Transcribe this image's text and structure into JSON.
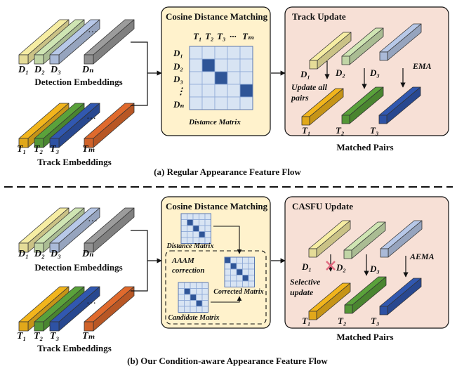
{
  "colors": {
    "d1": "#f6eda3",
    "d2": "#cfe5b3",
    "d3": "#b7c8e8",
    "dn": "#9c9c9c",
    "t1": "#f2b51c",
    "t2": "#5aa23b",
    "t3": "#3158b0",
    "tm": "#e06a2d",
    "panel": "#fff2cc",
    "panel_right": "#f7e0d6",
    "matrix_cell": "#d8e4f3",
    "matrix_dark": "#2f5597",
    "cross": "#e06a80"
  },
  "top": {
    "detection": {
      "labels": [
        "D₁",
        "D₂",
        "D₃",
        "Dₙ"
      ],
      "ellipsis": "···",
      "caption": "Detection Embeddings"
    },
    "track": {
      "labels": [
        "T₁",
        "T₂",
        "T₃",
        "Tₘ"
      ],
      "ellipsis": "···",
      "caption": "Track Embeddings"
    },
    "matching": {
      "title": "Cosine Distance Matching",
      "col_labels": [
        "T₁",
        "T₂",
        "T₃",
        "···",
        "Tₘ"
      ],
      "row_labels": [
        "D₁",
        "D₂",
        "D₃",
        "⋮",
        "Dₙ"
      ],
      "matrix_caption": "Distance Matrix"
    },
    "update": {
      "title": "Track Update",
      "det_labels": [
        "D₁",
        "D₂",
        "D₃"
      ],
      "track_labels": [
        "T₁",
        "T₂",
        "T₃"
      ],
      "note_line1": "Update all",
      "note_line2": "pairs",
      "ema": "EMA",
      "caption": "Matched Pairs"
    },
    "subcaption": "(a) Regular Appearance Feature Flow"
  },
  "bottom": {
    "detection": {
      "labels": [
        "D₁",
        "D₂",
        "D₃",
        "Dₙ"
      ],
      "ellipsis": "···",
      "caption": "Detection Embeddings"
    },
    "track": {
      "labels": [
        "T₁",
        "T₂",
        "T₃",
        "Tₘ"
      ],
      "ellipsis": "···",
      "caption": "Track Embeddings"
    },
    "matching": {
      "title": "Cosine Distance Matching",
      "distance_caption": "Distance Matrix",
      "aaam_line1": "AAAM",
      "aaam_line2": "correction",
      "corrected_caption": "Corrected Matrix",
      "candidate_caption": "Candidate Matrix"
    },
    "update": {
      "title": "CASFU Update",
      "det_labels": [
        "D₁",
        "D₂",
        "D₃"
      ],
      "track_labels": [
        "T₁",
        "T₂",
        "T₃"
      ],
      "note_line1": "Selective",
      "note_line2": "update",
      "ema": "AEMA",
      "caption": "Matched Pairs"
    },
    "subcaption": "(b) Our Condition-aware Appearance Feature Flow"
  }
}
